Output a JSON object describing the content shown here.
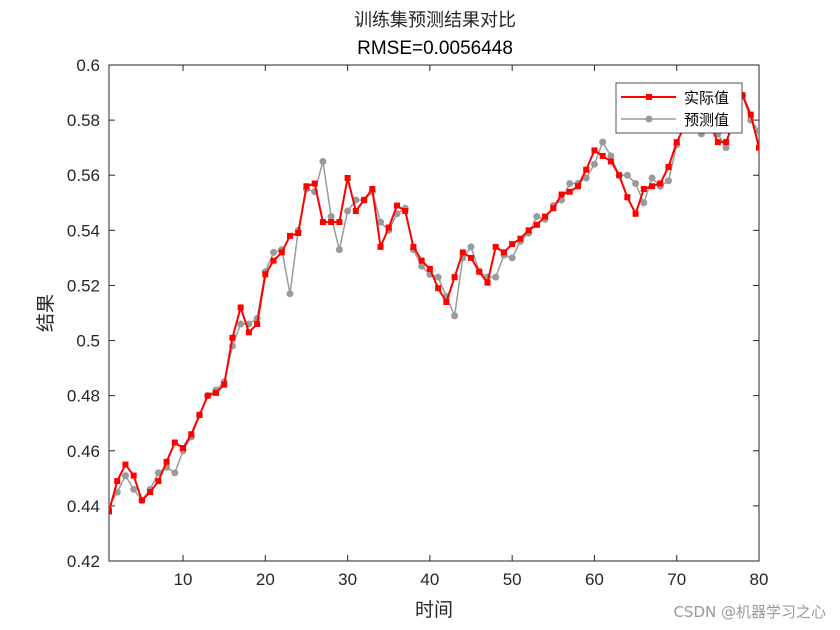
{
  "chart_data": {
    "type": "line",
    "title": "训练集预测结果对比",
    "subtitle": "RMSE=0.0056448",
    "xlabel": "时间",
    "ylabel": "结果",
    "xlim": [
      1,
      80
    ],
    "ylim": [
      0.42,
      0.6
    ],
    "xticks": [
      10,
      20,
      30,
      40,
      50,
      60,
      70,
      80
    ],
    "yticks": [
      0.42,
      0.44,
      0.46,
      0.48,
      0.5,
      0.52,
      0.54,
      0.56,
      0.58,
      0.6
    ],
    "grid": false,
    "legend_position": "top-right",
    "x": [
      1,
      2,
      3,
      4,
      5,
      6,
      7,
      8,
      9,
      10,
      11,
      12,
      13,
      14,
      15,
      16,
      17,
      18,
      19,
      20,
      21,
      22,
      23,
      24,
      25,
      26,
      27,
      28,
      29,
      30,
      31,
      32,
      33,
      34,
      35,
      36,
      37,
      38,
      39,
      40,
      41,
      42,
      43,
      44,
      45,
      46,
      47,
      48,
      49,
      50,
      51,
      52,
      53,
      54,
      55,
      56,
      57,
      58,
      59,
      60,
      61,
      62,
      63,
      64,
      65,
      66,
      67,
      68,
      69,
      70,
      71,
      72,
      73,
      74,
      75,
      76,
      77,
      78,
      79,
      80
    ],
    "series": [
      {
        "name": "实际值",
        "color": "#ff0000",
        "marker": "square",
        "values": [
          0.438,
          0.449,
          0.455,
          0.451,
          0.442,
          0.445,
          0.449,
          0.456,
          0.463,
          0.461,
          0.466,
          0.473,
          0.48,
          0.481,
          0.484,
          0.501,
          0.512,
          0.503,
          0.506,
          0.524,
          0.529,
          0.532,
          0.538,
          0.539,
          0.556,
          0.557,
          0.543,
          0.543,
          0.543,
          0.559,
          0.547,
          0.551,
          0.555,
          0.534,
          0.541,
          0.549,
          0.547,
          0.534,
          0.529,
          0.526,
          0.519,
          0.514,
          0.523,
          0.532,
          0.53,
          0.525,
          0.521,
          0.534,
          0.532,
          0.535,
          0.537,
          0.54,
          0.542,
          0.545,
          0.548,
          0.553,
          0.554,
          0.556,
          0.562,
          0.569,
          0.567,
          0.565,
          0.56,
          0.552,
          0.546,
          0.555,
          0.556,
          0.557,
          0.563,
          0.572,
          0.578,
          0.583,
          0.58,
          0.579,
          0.572,
          0.572,
          0.58,
          0.589,
          0.582,
          0.57
        ]
      },
      {
        "name": "预测值",
        "color": "#9a9a9a",
        "marker": "circle",
        "values": [
          0.44,
          0.445,
          0.451,
          0.446,
          0.442,
          0.446,
          0.452,
          0.454,
          0.452,
          0.46,
          0.465,
          0.473,
          0.48,
          0.482,
          0.485,
          0.498,
          0.506,
          0.506,
          0.508,
          0.525,
          0.532,
          0.533,
          0.517,
          0.54,
          0.555,
          0.554,
          0.565,
          0.545,
          0.533,
          0.547,
          0.551,
          0.551,
          0.554,
          0.543,
          0.54,
          0.546,
          0.548,
          0.533,
          0.527,
          0.524,
          0.523,
          0.516,
          0.509,
          0.53,
          0.534,
          0.525,
          0.523,
          0.523,
          0.531,
          0.53,
          0.536,
          0.539,
          0.545,
          0.544,
          0.549,
          0.551,
          0.557,
          0.557,
          0.559,
          0.564,
          0.572,
          0.567,
          0.56,
          0.56,
          0.557,
          0.55,
          0.559,
          0.556,
          0.558,
          0.571,
          0.579,
          0.582,
          0.575,
          0.578,
          0.575,
          0.57,
          0.585,
          0.589,
          0.58,
          0.576
        ]
      }
    ]
  },
  "watermark": "CSDN @机器学习之心"
}
